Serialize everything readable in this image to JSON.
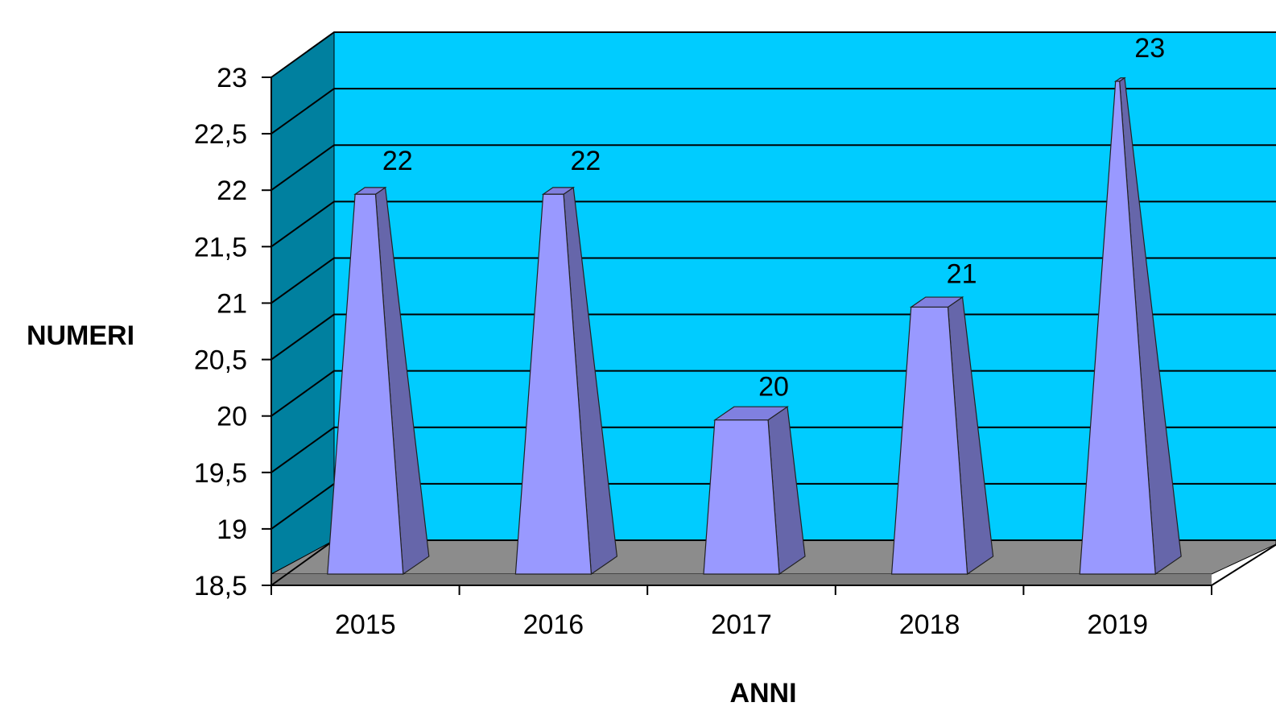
{
  "chart_data": {
    "type": "bar",
    "style": "3d-pyramid",
    "categories": [
      "2015",
      "2016",
      "2017",
      "2018",
      "2019"
    ],
    "values": [
      22,
      22,
      20,
      21,
      23
    ],
    "data_labels": [
      "22",
      "22",
      "20",
      "21",
      "23"
    ],
    "xlabel": "ANNI",
    "ylabel": "NUMERI",
    "ylim": [
      18.5,
      23
    ],
    "yticks": [
      "18,5",
      "19",
      "19,5",
      "20",
      "20,5",
      "21",
      "21,5",
      "22",
      "22,5",
      "23"
    ],
    "grid": true,
    "legend": "none",
    "colors": {
      "back_wall": "#00CCFF",
      "side_wall": "#00809F",
      "floor": "#8C8C8C",
      "bar_front": "#9999FF",
      "bar_side": "#6666AA",
      "bar_top": "#8080E0",
      "gridline": "#000000"
    }
  }
}
